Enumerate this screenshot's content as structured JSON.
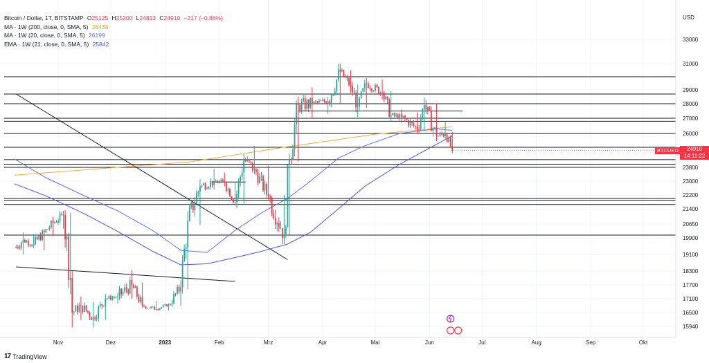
{
  "legend": {
    "title": "Bitcoin / Dollar, 1T, BITSTAMP",
    "o_label": "O",
    "o": "25125",
    "h_label": "H",
    "h": "25200",
    "l_label": "L",
    "l": "24813",
    "c_label": "C",
    "c": "24910",
    "chg": "−217 (−0.86%)",
    "ma200_label": "MA · 1W (200, close, 0, SMA, 5)",
    "ma200_value": "26438",
    "ma20_label": "MA · 1W (20, close, 0, SMA, 5)",
    "ma20_value": "26199",
    "ema21_label": "EMA · 1W (21, close, 0, SMA, 5)",
    "ema21_value": "25842"
  },
  "price_tag": {
    "symbol": "BTCUSD",
    "price": "24910",
    "countdown": "14:11:22"
  },
  "footer": {
    "brand": "TradingView"
  },
  "colors": {
    "up": "#26a69a",
    "down": "#f23645",
    "ma200": "#f7a93b",
    "ma20": "#5b6ef5",
    "ema21": "#3f55e8",
    "hline": "#131722",
    "grid": "#f0f3fa",
    "axis_text": "#131722"
  },
  "chart_data": {
    "type": "candlestick",
    "currency_label": "USD",
    "y_ticks": [
      15940,
      16500,
      17100,
      17700,
      18300,
      19100,
      19900,
      20650,
      21400,
      22200,
      23000,
      23800,
      24910,
      26000,
      27000,
      28000,
      29000,
      31000,
      33000
    ],
    "x_ticks": [
      "Nov",
      "Dez",
      "2023",
      "Feb",
      "Mrz",
      "Apr",
      "Mai",
      "Jun",
      "Jul",
      "Aug",
      "Sep",
      "Okt"
    ],
    "last_price": 24910,
    "horizontal_levels": [
      30000,
      28700,
      28000,
      27000,
      26800,
      26000,
      25100,
      24300,
      24000,
      23800,
      22000,
      21900,
      21650,
      20050
    ],
    "trendlines": [
      {
        "from": [
          "2022-10-08",
          28700
        ],
        "to": [
          "2023-03-12",
          18850
        ]
      },
      {
        "from": [
          "2022-10-08",
          18500
        ],
        "to": [
          "2023-02-10",
          17850
        ]
      },
      {
        "from": [
          "2023-01-28",
          22950
        ],
        "to": [
          "2023-02-16",
          22950
        ]
      },
      {
        "from": [
          "2023-03-18",
          27500
        ],
        "to": [
          "2023-06-20",
          27500
        ]
      }
    ],
    "series": [
      {
        "name": "BTCUSD",
        "kind": "ohlc_polyline",
        "points": [
          [
            "2022-10-07",
            19550,
            20000,
            19300,
            19400
          ],
          [
            "2022-10-12",
            19400,
            20200,
            19100,
            19800
          ],
          [
            "2022-10-18",
            19800,
            20100,
            19400,
            19600
          ],
          [
            "2022-10-24",
            19600,
            20400,
            19300,
            20200
          ],
          [
            "2022-10-29",
            20200,
            21000,
            20000,
            20700
          ],
          [
            "2022-11-04",
            20700,
            21300,
            20400,
            21100
          ],
          [
            "2022-11-08",
            21100,
            21200,
            17300,
            18000
          ],
          [
            "2022-11-09",
            18000,
            18300,
            15900,
            16500
          ],
          [
            "2022-11-14",
            16500,
            17200,
            16200,
            16800
          ],
          [
            "2022-11-21",
            16800,
            16950,
            15900,
            16300
          ],
          [
            "2022-11-28",
            16300,
            17300,
            16200,
            17100
          ],
          [
            "2022-12-05",
            17100,
            17350,
            16900,
            17200
          ],
          [
            "2022-12-13",
            17200,
            18350,
            17100,
            17700
          ],
          [
            "2022-12-19",
            17700,
            17800,
            16700,
            16800
          ],
          [
            "2022-12-27",
            16800,
            17000,
            16600,
            16650
          ],
          [
            "2023-01-03",
            16650,
            16900,
            16600,
            16850
          ],
          [
            "2023-01-10",
            16850,
            17900,
            16800,
            17600
          ],
          [
            "2023-01-14",
            17600,
            21000,
            17500,
            20800
          ],
          [
            "2023-01-21",
            20800,
            23100,
            20600,
            22700
          ],
          [
            "2023-01-29",
            22700,
            23700,
            22500,
            23000
          ],
          [
            "2023-02-04",
            23000,
            23500,
            22700,
            22900
          ],
          [
            "2023-02-10",
            22900,
            22950,
            21600,
            21800
          ],
          [
            "2023-02-15",
            21800,
            24400,
            21700,
            24300
          ],
          [
            "2023-02-21",
            24300,
            25200,
            23400,
            23700
          ],
          [
            "2023-03-01",
            23700,
            23900,
            22000,
            22100
          ],
          [
            "2023-03-10",
            22100,
            22200,
            19600,
            20100
          ],
          [
            "2023-03-13",
            20100,
            24700,
            20000,
            24300
          ],
          [
            "2023-03-18",
            24300,
            28500,
            24200,
            27900
          ],
          [
            "2023-03-26",
            27900,
            29200,
            27000,
            28000
          ],
          [
            "2023-04-04",
            28000,
            28500,
            27300,
            28200
          ],
          [
            "2023-04-11",
            28200,
            31000,
            28000,
            30400
          ],
          [
            "2023-04-17",
            30400,
            30500,
            28800,
            29300
          ],
          [
            "2023-04-21",
            29300,
            29400,
            27100,
            27800
          ],
          [
            "2023-04-26",
            27800,
            29900,
            27700,
            29500
          ],
          [
            "2023-05-05",
            29500,
            29800,
            28300,
            28800
          ],
          [
            "2023-05-10",
            28800,
            28900,
            26800,
            27200
          ],
          [
            "2023-05-16",
            27200,
            27600,
            26700,
            27100
          ],
          [
            "2023-05-25",
            27100,
            27400,
            26000,
            26300
          ],
          [
            "2023-05-29",
            26300,
            28450,
            26200,
            27900
          ],
          [
            "2023-06-05",
            27900,
            28000,
            25500,
            25800
          ],
          [
            "2023-06-10",
            25800,
            26800,
            25600,
            26000
          ],
          [
            "2023-06-14",
            26000,
            26100,
            24800,
            24910
          ]
        ]
      },
      {
        "name": "MA · 1W (200, close, 0, SMA, 5)",
        "kind": "line",
        "points": [
          [
            "2022-10-07",
            23350
          ],
          [
            "2023-01-15",
            24150
          ],
          [
            "2023-03-10",
            25100
          ],
          [
            "2023-05-01",
            25950
          ],
          [
            "2023-06-14",
            26438
          ]
        ]
      },
      {
        "name": "MA · 1W (20, close, 0, SMA, 5)",
        "kind": "line",
        "points": [
          [
            "2022-10-07",
            24350
          ],
          [
            "2022-10-25",
            23200
          ],
          [
            "2022-11-15",
            22200
          ],
          [
            "2022-12-05",
            21300
          ],
          [
            "2022-12-25",
            20300
          ],
          [
            "2023-01-10",
            19300
          ],
          [
            "2023-01-25",
            19200
          ],
          [
            "2023-02-10",
            20300
          ],
          [
            "2023-02-25",
            21200
          ],
          [
            "2023-03-12",
            22000
          ],
          [
            "2023-03-25",
            23000
          ],
          [
            "2023-04-10",
            24400
          ],
          [
            "2023-04-25",
            25200
          ],
          [
            "2023-05-15",
            26000
          ],
          [
            "2023-06-05",
            26300
          ],
          [
            "2023-06-14",
            26199
          ]
        ]
      },
      {
        "name": "EMA · 1W (21, close, 0, SMA, 5)",
        "kind": "line",
        "points": [
          [
            "2022-10-07",
            22850
          ],
          [
            "2022-10-25",
            22150
          ],
          [
            "2022-11-15",
            21200
          ],
          [
            "2022-12-05",
            20250
          ],
          [
            "2022-12-25",
            19250
          ],
          [
            "2023-01-10",
            18600
          ],
          [
            "2023-01-25",
            18650
          ],
          [
            "2023-02-10",
            18950
          ],
          [
            "2023-02-25",
            19250
          ],
          [
            "2023-03-12",
            19600
          ],
          [
            "2023-03-25",
            20200
          ],
          [
            "2023-04-10",
            21400
          ],
          [
            "2023-04-25",
            22700
          ],
          [
            "2023-05-15",
            24000
          ],
          [
            "2023-06-05",
            25300
          ],
          [
            "2023-06-14",
            25842
          ]
        ]
      }
    ]
  }
}
